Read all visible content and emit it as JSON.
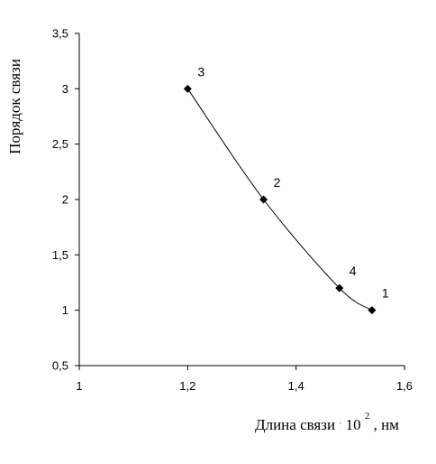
{
  "chart_data": {
    "type": "scatter",
    "title": "",
    "xlabel": {
      "prefix": "Длина связи ",
      "multiplier": "·",
      "base": "10",
      "exponent": "2",
      "suffix": ", нм"
    },
    "ylabel": "Порядок связи",
    "xlim": [
      1,
      1.6
    ],
    "ylim": [
      0.5,
      3.5
    ],
    "x_ticks": [
      "1",
      "1,2",
      "1,4",
      "1,6"
    ],
    "y_ticks": [
      "0,5",
      "1",
      "1,5",
      "2",
      "2,5",
      "3",
      "3,5"
    ],
    "grid": false,
    "legend": "none",
    "series": [
      {
        "color": "#000000",
        "marker": "diamond",
        "line": "smooth",
        "points": [
          {
            "x": 1.2,
            "y": 3,
            "label": "3"
          },
          {
            "x": 1.34,
            "y": 2,
            "label": "2"
          },
          {
            "x": 1.48,
            "y": 1.2,
            "label": "4"
          },
          {
            "x": 1.54,
            "y": 1,
            "label": "1"
          }
        ]
      }
    ]
  }
}
